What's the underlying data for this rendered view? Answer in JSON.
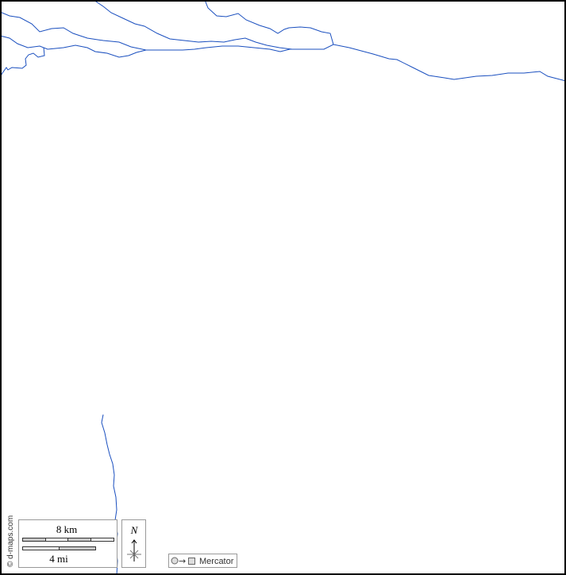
{
  "map": {
    "credit": "© d-maps.com",
    "scale_km_label": "8 km",
    "scale_mi_label": "4 mi",
    "north_label": "N",
    "projection_label": "Mercator",
    "colors": {
      "river": "#1a4fbf",
      "frame": "#000000",
      "scale_fill": "#c8c8c8"
    }
  }
}
